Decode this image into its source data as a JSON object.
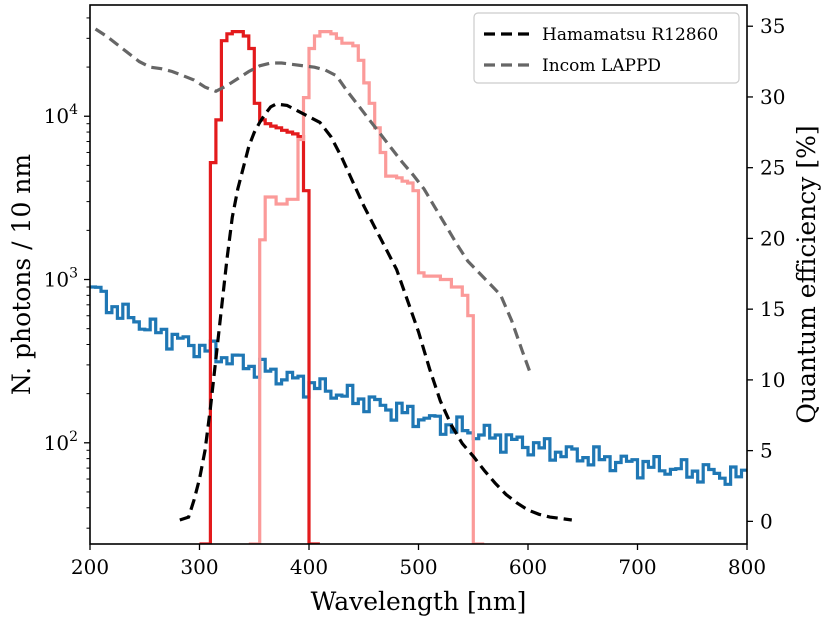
{
  "chart_data": {
    "type": "line",
    "xlabel": "Wavelength [nm]",
    "ylabel_left": "N. photons / 10 nm",
    "ylabel_right": "Quantum efficiency [%]",
    "xlim": [
      200,
      800
    ],
    "ylim_left": [
      24,
      48000
    ],
    "yscale_left": "log",
    "ylim_right": [
      -1.6,
      36.5
    ],
    "x_ticks": [
      "200",
      "300",
      "400",
      "500",
      "600",
      "700",
      "800"
    ],
    "y_left_ticks": [
      {
        "value": 100,
        "base": "10",
        "exp": "2"
      },
      {
        "value": 1000,
        "base": "10",
        "exp": "3"
      },
      {
        "value": 10000,
        "base": "10",
        "exp": "4"
      }
    ],
    "y_right_ticks": [
      "0",
      "5",
      "10",
      "15",
      "20",
      "25",
      "30",
      "35"
    ],
    "grid": false,
    "legend": {
      "position": "top-right",
      "entries": [
        {
          "label": "Hamamatsu R12860",
          "color": "#000000",
          "style": "dashed"
        },
        {
          "label": "Incom LAPPD",
          "color": "#666666",
          "style": "dashed"
        }
      ]
    },
    "histograms": [
      {
        "color": "#1f77b4",
        "axis": "left",
        "bin_width": 5,
        "x_start": 200,
        "values": [
          900,
          850,
          760,
          720,
          680,
          640,
          610,
          580,
          560,
          540,
          520,
          500,
          480,
          470,
          455,
          440,
          425,
          410,
          400,
          390,
          380,
          370,
          360,
          350,
          340,
          330,
          320,
          312,
          305,
          298,
          290,
          282,
          274,
          268,
          261,
          255,
          249,
          243,
          237,
          231,
          226,
          221,
          216,
          211,
          206,
          201,
          197,
          192,
          188,
          184,
          180,
          176,
          172,
          168,
          164,
          160,
          157,
          153,
          150,
          146,
          143,
          140,
          137,
          134,
          131,
          128,
          126,
          123,
          121,
          118,
          116,
          114,
          112,
          110,
          108,
          106,
          104,
          102,
          100,
          98,
          96,
          95,
          93,
          92,
          90,
          89,
          88,
          86,
          85,
          84,
          83,
          82,
          81,
          80,
          79,
          78,
          77,
          76,
          75,
          75,
          74,
          73,
          72,
          72,
          71,
          70,
          70,
          69,
          68,
          68,
          67,
          66,
          66,
          65,
          65,
          64,
          63,
          63,
          62,
          62
        ],
        "noise": 0.18
      },
      {
        "color": "#e31a1c",
        "axis": "left",
        "bins": [
          [
            300,
            310,
            24
          ],
          [
            310,
            315,
            5200
          ],
          [
            315,
            320,
            9500
          ],
          [
            320,
            325,
            29000
          ],
          [
            325,
            330,
            32000
          ],
          [
            330,
            335,
            33000
          ],
          [
            335,
            340,
            33000
          ],
          [
            340,
            345,
            31000
          ],
          [
            345,
            350,
            26000
          ],
          [
            350,
            355,
            12000
          ],
          [
            355,
            360,
            9500
          ],
          [
            360,
            365,
            9000
          ],
          [
            365,
            370,
            8700
          ],
          [
            370,
            375,
            8500
          ],
          [
            375,
            380,
            8200
          ],
          [
            380,
            385,
            8000
          ],
          [
            385,
            390,
            7800
          ],
          [
            390,
            395,
            7500
          ],
          [
            395,
            400,
            3500
          ],
          [
            400,
            410,
            24
          ]
        ]
      },
      {
        "color": "#fb9a99",
        "axis": "left",
        "bins": [
          [
            345,
            355,
            24
          ],
          [
            355,
            360,
            1750
          ],
          [
            360,
            370,
            3200
          ],
          [
            370,
            380,
            2900
          ],
          [
            380,
            390,
            3100
          ],
          [
            390,
            395,
            7200
          ],
          [
            395,
            400,
            13000
          ],
          [
            400,
            405,
            26000
          ],
          [
            405,
            410,
            31000
          ],
          [
            410,
            415,
            33000
          ],
          [
            415,
            420,
            33000
          ],
          [
            420,
            425,
            32000
          ],
          [
            425,
            430,
            30000
          ],
          [
            430,
            435,
            28000
          ],
          [
            435,
            440,
            28000
          ],
          [
            440,
            445,
            27000
          ],
          [
            445,
            450,
            22000
          ],
          [
            450,
            455,
            16000
          ],
          [
            455,
            460,
            12000
          ],
          [
            460,
            465,
            8500
          ],
          [
            465,
            470,
            6000
          ],
          [
            470,
            475,
            4300
          ],
          [
            475,
            480,
            4300
          ],
          [
            480,
            485,
            4200
          ],
          [
            485,
            490,
            4000
          ],
          [
            490,
            495,
            3900
          ],
          [
            495,
            500,
            3500
          ],
          [
            500,
            505,
            1100
          ],
          [
            505,
            510,
            1050
          ],
          [
            510,
            520,
            1050
          ],
          [
            520,
            530,
            1000
          ],
          [
            530,
            540,
            900
          ],
          [
            540,
            545,
            800
          ],
          [
            545,
            550,
            600
          ],
          [
            550,
            560,
            24
          ]
        ]
      }
    ],
    "series": [
      {
        "name": "Hamamatsu R12860",
        "color": "#000000",
        "axis": "right",
        "style": "dashed",
        "x": [
          282,
          290,
          295,
          300,
          305,
          310,
          315,
          320,
          325,
          330,
          335,
          340,
          345,
          350,
          355,
          360,
          365,
          370,
          380,
          390,
          400,
          410,
          420,
          430,
          440,
          450,
          460,
          470,
          480,
          490,
          500,
          510,
          520,
          530,
          540,
          550,
          560,
          570,
          580,
          590,
          600,
          610,
          620,
          630,
          640
        ],
        "y": [
          0.1,
          0.3,
          1.5,
          3,
          5,
          8,
          11.5,
          15,
          18.5,
          21.5,
          23.5,
          25,
          26.5,
          27.5,
          28.2,
          28.8,
          29.3,
          29.5,
          29.4,
          29,
          28.6,
          28.2,
          27.2,
          25.7,
          24,
          22.3,
          20.8,
          19.3,
          17.8,
          15.6,
          13.4,
          10.8,
          8.5,
          6.8,
          5.5,
          4.6,
          3.6,
          2.7,
          1.9,
          1.3,
          0.8,
          0.5,
          0.3,
          0.2,
          0.1
        ]
      },
      {
        "name": "Incom LAPPD",
        "color": "#666666",
        "axis": "right",
        "style": "dashed",
        "x": [
          205,
          215,
          225,
          235,
          245,
          255,
          265,
          275,
          285,
          295,
          305,
          315,
          325,
          335,
          345,
          355,
          365,
          375,
          385,
          395,
          405,
          415,
          425,
          435,
          445,
          455,
          465,
          475,
          485,
          495,
          505,
          515,
          525,
          535,
          545,
          555,
          565,
          575,
          585,
          595,
          602
        ],
        "y": [
          34.8,
          34.3,
          33.7,
          33.1,
          32.5,
          32.1,
          32.0,
          31.8,
          31.5,
          31.2,
          30.7,
          30.4,
          30.8,
          31.3,
          31.8,
          32.2,
          32.4,
          32.4,
          32.3,
          32.2,
          32.1,
          31.9,
          31.5,
          30.4,
          29.4,
          28.4,
          27.4,
          26.4,
          25.4,
          24.5,
          23.5,
          22.2,
          20.9,
          19.6,
          18.4,
          17.6,
          16.8,
          16.0,
          14.2,
          12.0,
          10.5
        ]
      }
    ]
  }
}
